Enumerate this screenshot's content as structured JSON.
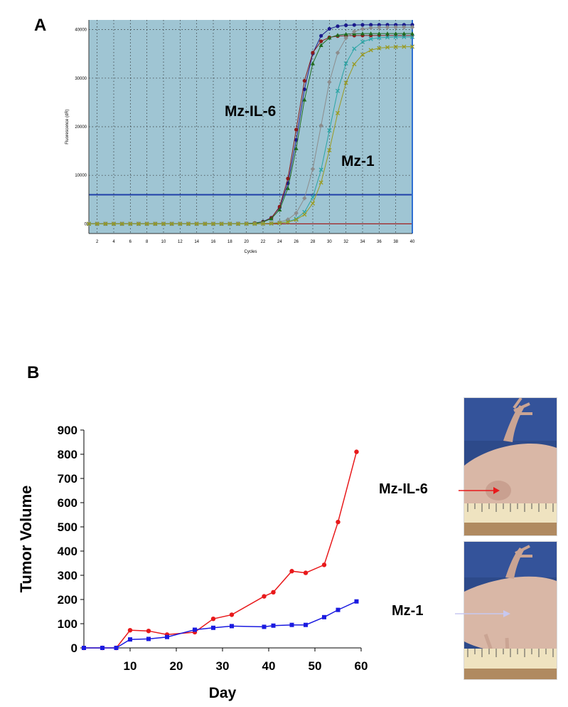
{
  "panel_a_letter": "A",
  "panel_b_letter": "B",
  "chart_data": [
    {
      "type": "line",
      "title": "",
      "xlabel": "Cycles",
      "ylabel": "Fluorescence (dR)",
      "xlim": [
        1,
        40
      ],
      "ylim": [
        -2000,
        42000
      ],
      "x_ticks": [
        2,
        4,
        6,
        8,
        10,
        12,
        14,
        16,
        18,
        20,
        22,
        24,
        26,
        28,
        30,
        32,
        34,
        36,
        38,
        40
      ],
      "y_ticks": [
        0,
        10000,
        20000,
        30000,
        40000
      ],
      "grid": true,
      "background_color": "#9fc5d3",
      "threshold": 6000,
      "threshold_color": "#1f3fa8",
      "baseline_color": "#a02020",
      "annotations": [
        "Mz-IL-6",
        "Mz-1"
      ],
      "curve_x": [
        1,
        2,
        3,
        4,
        5,
        6,
        7,
        8,
        9,
        10,
        11,
        12,
        13,
        14,
        15,
        16,
        17,
        18,
        19,
        20,
        21,
        22,
        23,
        24,
        25,
        26,
        27,
        28,
        29,
        30,
        31,
        32,
        33,
        34,
        35,
        36,
        37,
        38,
        39,
        40
      ],
      "series": [
        {
          "group": "Mz-IL-6",
          "color": "#1a1a8c",
          "marker": "circle",
          "plateau": 41000,
          "midpoint": 26.3,
          "slope": 1.05
        },
        {
          "group": "Mz-IL-6",
          "color": "#8b1a1a",
          "marker": "circle",
          "plateau": 38800,
          "midpoint": 26.0,
          "slope": 1.15
        },
        {
          "group": "Mz-IL-6",
          "color": "#1f6b1f",
          "marker": "triangle",
          "plateau": 39200,
          "midpoint": 26.4,
          "slope": 1.05
        },
        {
          "group": "Mz-1",
          "color": "#8c8c8c",
          "marker": "diamond",
          "plateau": 40500,
          "midpoint": 29.0,
          "slope": 0.95
        },
        {
          "group": "Mz-1",
          "color": "#2aa5a5",
          "marker": "cross",
          "plateau": 38500,
          "midpoint": 30.0,
          "slope": 0.9
        },
        {
          "group": "Mz-1",
          "color": "#9a9a20",
          "marker": "star",
          "plateau": 36500,
          "midpoint": 30.4,
          "slope": 0.85
        }
      ]
    },
    {
      "type": "line",
      "title": "",
      "xlabel": "Day",
      "ylabel": "Tumor Volume",
      "xlim": [
        0,
        60
      ],
      "ylim": [
        0,
        900
      ],
      "x_ticks": [
        10,
        20,
        30,
        40,
        50,
        60
      ],
      "y_ticks": [
        0,
        100,
        200,
        300,
        400,
        500,
        600,
        700,
        800,
        900
      ],
      "grid": false,
      "series": [
        {
          "color": "#e8191b",
          "marker": "circle",
          "x": [
            0,
            4,
            7,
            10,
            14,
            18,
            24,
            28,
            32,
            39,
            41,
            45,
            48,
            52,
            55,
            59
          ],
          "y": [
            0,
            0,
            0,
            73,
            70,
            55,
            65,
            120,
            137,
            213,
            230,
            317,
            310,
            343,
            520,
            810
          ]
        },
        {
          "color": "#1a1ae0",
          "marker": "square",
          "x": [
            0,
            4,
            7,
            10,
            14,
            18,
            24,
            28,
            32,
            39,
            41,
            45,
            48,
            52,
            55,
            59
          ],
          "y": [
            0,
            0,
            0,
            35,
            37,
            45,
            75,
            83,
            90,
            87,
            92,
            95,
            95,
            127,
            157,
            192
          ]
        }
      ]
    }
  ],
  "photos": [
    {
      "label": "Mz-IL-6",
      "arrow_color": "#e8191b"
    },
    {
      "label": "Mz-1",
      "arrow_color": "#c8c8f0"
    }
  ]
}
